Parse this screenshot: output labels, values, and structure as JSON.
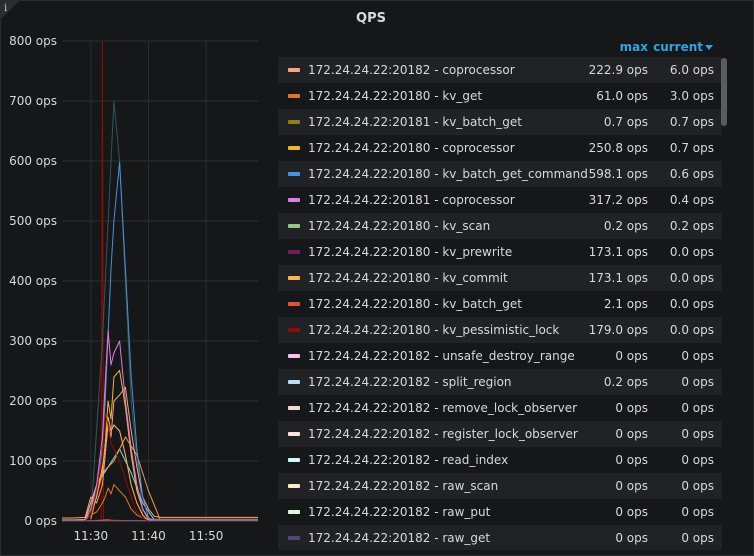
{
  "panel": {
    "title": "QPS"
  },
  "legend": {
    "max_label": "max",
    "current_label": "current"
  },
  "chart_data": {
    "type": "line",
    "title": "QPS",
    "ylim": [
      0,
      800
    ],
    "y_ticks": [
      "800 ops",
      "700 ops",
      "600 ops",
      "500 ops",
      "400 ops",
      "300 ops",
      "200 ops",
      "100 ops",
      "0 ops"
    ],
    "x_ticks": [
      "11:30",
      "11:40",
      "11:50"
    ],
    "x_range_minutes": [
      0,
      34
    ],
    "x_tick_minutes": [
      5,
      15,
      25
    ],
    "x": [
      0,
      2,
      4,
      5,
      6,
      7,
      7.5,
      8,
      8.5,
      9,
      10,
      11,
      12,
      13,
      14,
      15,
      16,
      17,
      18,
      20,
      22,
      25,
      30,
      34
    ],
    "series": [
      {
        "name": "172.24.24.22:20182 - coprocessor",
        "color": "#f4a582",
        "max": "222.9 ops",
        "current": "6.0 ops",
        "values": [
          5,
          5,
          6,
          40,
          30,
          60,
          110,
          160,
          140,
          200,
          210,
          223,
          150,
          90,
          40,
          20,
          8,
          6,
          6,
          6,
          6,
          6,
          6,
          6
        ]
      },
      {
        "name": "172.24.24.22:20180 - kv_get",
        "color": "#e0752d",
        "max": "61.0 ops",
        "current": "3.0 ops",
        "values": [
          2,
          2,
          3,
          10,
          15,
          30,
          40,
          55,
          45,
          61,
          50,
          40,
          20,
          10,
          5,
          3,
          3,
          3,
          3,
          3,
          3,
          3,
          3,
          3
        ]
      },
      {
        "name": "172.24.24.22:20181 - kv_batch_get",
        "color": "#8f7d1e",
        "max": "0.7 ops",
        "current": "0.7 ops",
        "values": [
          0.7,
          0.7,
          0.7,
          0.7,
          0.7,
          0.7,
          0.7,
          0.7,
          0.7,
          0.7,
          0.7,
          0.7,
          0.7,
          0.7,
          0.7,
          0.7,
          0.7,
          0.7,
          0.7,
          0.7,
          0.7,
          0.7,
          0.7,
          0.7
        ]
      },
      {
        "name": "172.24.24.22:20180 - coprocessor",
        "color": "#eab839",
        "max": "250.8 ops",
        "current": "0.7 ops",
        "values": [
          1,
          1,
          2,
          30,
          60,
          80,
          130,
          200,
          170,
          240,
          251,
          190,
          110,
          50,
          20,
          5,
          1,
          1,
          1,
          1,
          1,
          1,
          1,
          1
        ]
      },
      {
        "name": "172.24.24.22:20180 - kv_batch_get_command",
        "color": "#4f8fdb",
        "max": "598.1 ops",
        "current": "0.6 ops",
        "values": [
          1,
          1,
          1,
          20,
          50,
          120,
          200,
          310,
          420,
          500,
          598,
          420,
          240,
          120,
          40,
          5,
          1,
          1,
          1,
          1,
          1,
          1,
          1,
          1
        ]
      },
      {
        "name": "172.24.24.22:20181 - coprocessor",
        "color": "#e07ce0",
        "max": "317.2 ops",
        "current": "0.4 ops",
        "values": [
          0.4,
          0.4,
          0.4,
          20,
          60,
          140,
          230,
          317,
          260,
          280,
          300,
          200,
          120,
          60,
          20,
          2,
          0.4,
          0.4,
          0.4,
          0.4,
          0.4,
          0.4,
          0.4,
          0.4
        ]
      },
      {
        "name": "172.24.24.22:20180 - kv_scan",
        "color": "#9ac48a",
        "max": "0.2 ops",
        "current": "0.2 ops",
        "values": [
          0.2,
          0.2,
          0.2,
          0.2,
          0.2,
          0.2,
          0.2,
          0.2,
          0.2,
          0.2,
          0.2,
          0.2,
          0.2,
          0.2,
          0.2,
          0.2,
          0.2,
          0.2,
          0.2,
          0.2,
          0.2,
          0.2,
          0.2,
          0.2
        ]
      },
      {
        "name": "172.24.24.22:20180 - kv_prewrite",
        "color": "#6d1f62",
        "max": "173.1 ops",
        "current": "0.0 ops",
        "values": [
          0,
          0,
          0,
          10,
          40,
          90,
          120,
          173,
          150,
          160,
          150,
          110,
          60,
          30,
          10,
          0,
          0,
          0,
          0,
          0,
          0,
          0,
          0,
          0
        ]
      },
      {
        "name": "172.24.24.22:20180 - kv_commit",
        "color": "#ffb357",
        "max": "173.1 ops",
        "current": "0.0 ops",
        "values": [
          0,
          0,
          0,
          10,
          40,
          90,
          120,
          173,
          150,
          160,
          150,
          110,
          60,
          30,
          10,
          0,
          0,
          0,
          0,
          0,
          0,
          0,
          0,
          0
        ]
      },
      {
        "name": "172.24.24.22:20180 - kv_batch_get",
        "color": "#e24d42",
        "max": "2.1 ops",
        "current": "0.0 ops",
        "values": [
          0,
          0,
          0,
          0.5,
          1,
          1.5,
          2.1,
          2,
          1.5,
          1.2,
          1,
          0.5,
          0.2,
          0,
          0,
          0,
          0,
          0,
          0,
          0,
          0,
          0,
          0,
          0
        ]
      },
      {
        "name": "172.24.24.22:20180 - kv_pessimistic_lock",
        "color": "#890f02",
        "max": "179.0 ops",
        "current": "0.0 ops",
        "values": [
          0,
          0,
          0,
          10,
          50,
          110,
          179,
          160,
          130,
          120,
          100,
          70,
          40,
          15,
          5,
          0,
          0,
          0,
          0,
          0,
          0,
          0,
          0,
          0
        ]
      },
      {
        "name": "172.24.24.22:20182 - unsafe_destroy_range",
        "color": "#f9bdf4",
        "max": "0 ops",
        "current": "0 ops",
        "values": [
          0,
          0,
          0,
          0,
          0,
          0,
          0,
          0,
          0,
          0,
          0,
          0,
          0,
          0,
          0,
          0,
          0,
          0,
          0,
          0,
          0,
          0,
          0,
          0
        ]
      },
      {
        "name": "172.24.24.22:20182 - split_region",
        "color": "#badff4",
        "max": "0.2 ops",
        "current": "0 ops",
        "values": [
          0,
          0,
          0,
          0,
          0.1,
          0.2,
          0.1,
          0,
          0,
          0,
          0,
          0,
          0,
          0,
          0,
          0,
          0,
          0,
          0,
          0,
          0,
          0,
          0,
          0
        ]
      },
      {
        "name": "172.24.24.22:20182 - remove_lock_observer",
        "color": "#f9d9cc",
        "max": "0 ops",
        "current": "0 ops",
        "values": [
          0,
          0,
          0,
          0,
          0,
          0,
          0,
          0,
          0,
          0,
          0,
          0,
          0,
          0,
          0,
          0,
          0,
          0,
          0,
          0,
          0,
          0,
          0,
          0
        ]
      },
      {
        "name": "172.24.24.22:20182 - register_lock_observer",
        "color": "#fce2de",
        "max": "0 ops",
        "current": "0 ops",
        "values": [
          0,
          0,
          0,
          0,
          0,
          0,
          0,
          0,
          0,
          0,
          0,
          0,
          0,
          0,
          0,
          0,
          0,
          0,
          0,
          0,
          0,
          0,
          0,
          0
        ]
      },
      {
        "name": "172.24.24.22:20182 - read_index",
        "color": "#cffaff",
        "max": "0 ops",
        "current": "0 ops",
        "values": [
          0,
          0,
          0,
          0,
          0,
          0,
          0,
          0,
          0,
          0,
          0,
          0,
          0,
          0,
          0,
          0,
          0,
          0,
          0,
          0,
          0,
          0,
          0,
          0
        ]
      },
      {
        "name": "172.24.24.22:20182 - raw_scan",
        "color": "#fceaca",
        "max": "0 ops",
        "current": "0 ops",
        "values": [
          0,
          0,
          0,
          0,
          0,
          0,
          0,
          0,
          0,
          0,
          0,
          0,
          0,
          0,
          0,
          0,
          0,
          0,
          0,
          0,
          0,
          0,
          0,
          0
        ]
      },
      {
        "name": "172.24.24.22:20182 - raw_put",
        "color": "#e0f9d7",
        "max": "0 ops",
        "current": "0 ops",
        "values": [
          0,
          0,
          0,
          0,
          0,
          0,
          0,
          0,
          0,
          0,
          0,
          0,
          0,
          0,
          0,
          0,
          0,
          0,
          0,
          0,
          0,
          0,
          0,
          0
        ]
      },
      {
        "name": "172.24.24.22:20182 - raw_get",
        "color": "#584477",
        "max": "0 ops",
        "current": "0 ops",
        "values": [
          0,
          0,
          0,
          0,
          0,
          0,
          0,
          0,
          0,
          0,
          0,
          0,
          0,
          0,
          0,
          0,
          0,
          0,
          0,
          0,
          0,
          0,
          0,
          0
        ]
      }
    ],
    "extra_spike_series": [
      {
        "color": "#890f02",
        "x": [
          6.8,
          7,
          7.2
        ],
        "values": [
          0,
          800,
          0
        ]
      },
      {
        "color": "#2f575e",
        "x": [
          5,
          7,
          9,
          10,
          11,
          12,
          14
        ],
        "values": [
          5,
          300,
          700,
          600,
          400,
          200,
          10
        ]
      },
      {
        "color": "#70dbed",
        "x": [
          4,
          6,
          8,
          10,
          12,
          14,
          16
        ],
        "values": [
          2,
          60,
          90,
          120,
          80,
          30,
          2
        ]
      },
      {
        "color": "#f9934e",
        "x": [
          5,
          7,
          9,
          11,
          13,
          15,
          17
        ],
        "values": [
          3,
          80,
          100,
          140,
          110,
          50,
          3
        ]
      }
    ]
  }
}
